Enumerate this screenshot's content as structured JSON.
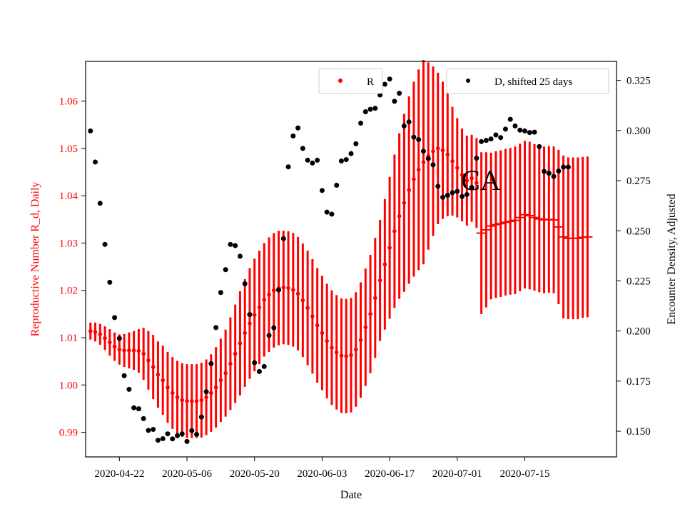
{
  "chart_data": {
    "type": "scatter",
    "xlabel": "Date",
    "ylabel_left": "Reproductive Number R_d, Daily",
    "ylabel_right": "Encounter Density, Adjusted",
    "annotation": "CA",
    "colors": {
      "R": "#ff0000",
      "D": "#000000",
      "left_axis_text": "#ff0000"
    },
    "grid": false,
    "x_range": [
      "2020-04-15",
      "2020-08-03"
    ],
    "x_ticks": [
      "2020-04-22",
      "2020-05-06",
      "2020-05-20",
      "2020-06-03",
      "2020-06-17",
      "2020-07-01",
      "2020-07-15"
    ],
    "y_left_range": [
      0.9848,
      1.0684
    ],
    "y_left_ticks": [
      "0.99",
      "1.00",
      "1.01",
      "1.02",
      "1.03",
      "1.04",
      "1.05",
      "1.06"
    ],
    "y_right_range": [
      0.1372,
      0.3345
    ],
    "y_right_ticks": [
      "0.150",
      "0.175",
      "0.200",
      "0.225",
      "0.250",
      "0.275",
      "0.300",
      "0.325"
    ],
    "legend": [
      {
        "label": "R",
        "placement": "top-center",
        "marker": "red-dot"
      },
      {
        "label": "D, shifted 25 days",
        "placement": "top-right",
        "marker": "black-dot"
      }
    ],
    "series": [
      {
        "name": "R",
        "axis": "left",
        "start_date": "2020-04-16",
        "values": [
          1.0114,
          1.0112,
          1.0107,
          1.0099,
          1.009,
          1.0081,
          1.0075,
          1.0073,
          1.0073,
          1.0073,
          1.0072,
          1.0066,
          1.0052,
          1.0038,
          1.0022,
          1.001,
          0.9995,
          0.9983,
          0.9974,
          0.9968,
          0.9966,
          0.9966,
          0.9966,
          0.9968,
          0.9974,
          0.9983,
          0.9995,
          1.001,
          1.0025,
          1.0045,
          1.0066,
          1.0088,
          1.011,
          1.013,
          1.0148,
          1.0164,
          1.018,
          1.0191,
          1.02,
          1.0205,
          1.0206,
          1.0205,
          1.0201,
          1.0193,
          1.0179,
          1.0163,
          1.0145,
          1.0126,
          1.011,
          1.0093,
          1.0079,
          1.0069,
          1.0062,
          1.0061,
          1.0063,
          1.0075,
          1.0095,
          1.0122,
          1.015,
          1.0184,
          1.0221,
          1.0255,
          1.029,
          1.0325,
          1.0357,
          1.0385,
          1.0412,
          1.0435,
          1.0455,
          1.0471,
          1.0484,
          1.0494,
          1.05,
          1.0496,
          1.0487,
          1.0473,
          1.0459,
          1.0444,
          1.0432,
          1.0437,
          1.0427,
          1.0321,
          1.0328,
          1.0336,
          1.0339,
          1.0341,
          1.0344,
          1.0346,
          1.0348,
          1.0354,
          1.036,
          1.0358,
          1.0354,
          1.0351,
          1.0349,
          1.035,
          1.0349,
          1.0334,
          1.0313,
          1.031,
          1.031,
          1.031,
          1.0312,
          1.0313
        ],
        "err": [
          0.0018,
          0.002,
          0.0022,
          0.0025,
          0.0028,
          0.003,
          0.0032,
          0.0035,
          0.0038,
          0.0041,
          0.0046,
          0.0055,
          0.0062,
          0.0068,
          0.007,
          0.0073,
          0.0075,
          0.0076,
          0.0077,
          0.0078,
          0.0078,
          0.0078,
          0.0078,
          0.0079,
          0.008,
          0.0082,
          0.0085,
          0.0088,
          0.0092,
          0.0098,
          0.0104,
          0.011,
          0.0114,
          0.0117,
          0.0119,
          0.012,
          0.012,
          0.0121,
          0.0121,
          0.0121,
          0.012,
          0.012,
          0.012,
          0.012,
          0.012,
          0.0121,
          0.0121,
          0.0121,
          0.0121,
          0.0121,
          0.0121,
          0.0121,
          0.0121,
          0.0121,
          0.0121,
          0.0121,
          0.0122,
          0.0124,
          0.0125,
          0.0127,
          0.0128,
          0.0138,
          0.015,
          0.0162,
          0.0175,
          0.0188,
          0.0198,
          0.0206,
          0.0212,
          0.0216,
          0.0198,
          0.0179,
          0.016,
          0.0145,
          0.013,
          0.0115,
          0.0105,
          0.0098,
          0.0095,
          0.0092,
          0.0095,
          0.0171,
          0.0164,
          0.0155,
          0.0155,
          0.0155,
          0.0155,
          0.0155,
          0.0156,
          0.0156,
          0.0156,
          0.0156,
          0.0155,
          0.0155,
          0.0155,
          0.0155,
          0.0155,
          0.0163,
          0.0172,
          0.0171,
          0.0171,
          0.0171,
          0.017,
          0.017
        ],
        "marker_style": [
          "dot",
          "dot",
          "dot",
          "dot",
          "dot",
          "dot",
          "dot",
          "dot",
          "dot",
          "dot",
          "dot",
          "dot",
          "dot",
          "dot",
          "dot",
          "dot",
          "dot",
          "dot",
          "dot",
          "dot",
          "dot",
          "dot",
          "dot",
          "dot",
          "dot",
          "dot",
          "dot",
          "dot",
          "dot",
          "dot",
          "dot",
          "dot",
          "dot",
          "dot",
          "dot",
          "dot",
          "dot",
          "dot",
          "dot",
          "dot",
          "dot",
          "dot",
          "dot",
          "dot",
          "dot",
          "dot",
          "dot",
          "dot",
          "dot",
          "dot",
          "dot",
          "dot",
          "dot",
          "dot",
          "dot",
          "dot",
          "dot",
          "dot",
          "dot",
          "dot",
          "dot",
          "dot",
          "dot",
          "dot",
          "dot",
          "dot",
          "dot",
          "dot",
          "dot",
          "dot",
          "dot",
          "dot",
          "dot",
          "dot",
          "dot",
          "dot",
          "dot",
          "dot",
          "dot",
          "dot",
          "dot",
          "line",
          "line",
          "line",
          "line",
          "line",
          "line",
          "line",
          "line",
          "line",
          "line",
          "line",
          "line",
          "line",
          "line",
          "line",
          "line",
          "line",
          "line",
          "line",
          "line",
          "line",
          "line",
          "line"
        ]
      },
      {
        "name": "D, shifted 25 days",
        "axis": "right",
        "start_date": "2020-04-16",
        "values": [
          0.2998,
          0.2843,
          0.2637,
          0.2432,
          0.2243,
          0.2067,
          0.1963,
          0.1777,
          0.1709,
          0.1617,
          0.1612,
          0.1563,
          0.1504,
          0.1509,
          0.1455,
          0.1463,
          0.1487,
          0.1462,
          0.1478,
          0.1487,
          0.1449,
          0.1503,
          0.1484,
          0.1571,
          0.1697,
          0.1837,
          0.2017,
          0.2192,
          0.2306,
          0.2432,
          0.2426,
          0.2373,
          0.2236,
          0.2082,
          0.1842,
          0.1798,
          0.1823,
          0.1978,
          0.2016,
          0.2205,
          0.2461,
          0.2819,
          0.2973,
          0.3013,
          0.2911,
          0.2852,
          0.2838,
          0.2852,
          0.2701,
          0.2593,
          0.2583,
          0.2727,
          0.2848,
          0.2855,
          0.2885,
          0.2934,
          0.3037,
          0.3094,
          0.3106,
          0.3111,
          0.3177,
          0.3231,
          0.3257,
          0.3146,
          0.3186,
          0.3023,
          0.3043,
          0.2967,
          0.2955,
          0.2897,
          0.286,
          0.2829,
          0.2722,
          0.2667,
          0.2677,
          0.269,
          0.2697,
          0.2671,
          0.2681,
          0.2716,
          0.2862,
          0.2945,
          0.2951,
          0.2958,
          0.2978,
          0.2965,
          0.3007,
          0.3056,
          0.3023,
          0.3002,
          0.2998,
          0.299,
          0.2992,
          0.292,
          0.2796,
          0.2787,
          0.2771,
          0.2798,
          0.2818,
          0.2818
        ]
      }
    ]
  }
}
